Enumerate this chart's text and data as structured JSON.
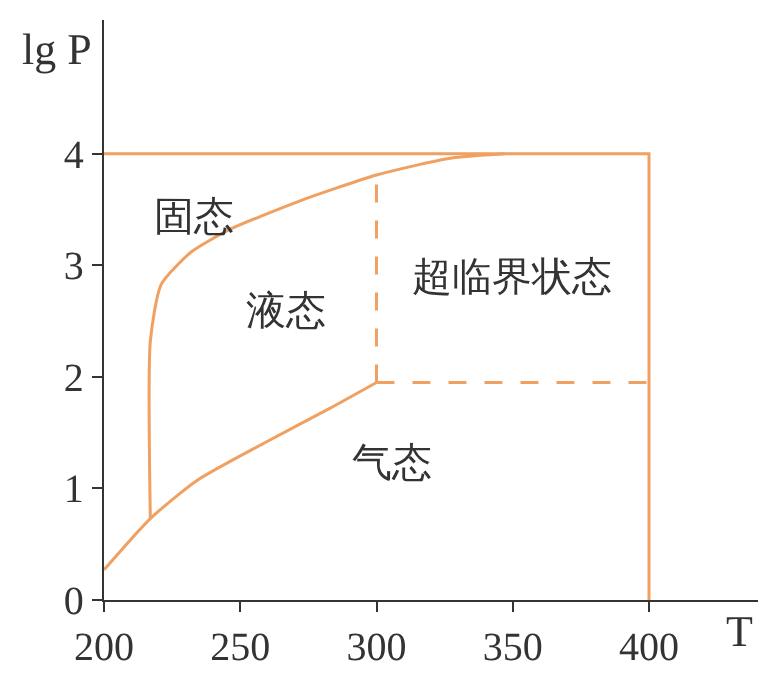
{
  "chart_data": {
    "type": "line",
    "xlabel": "T",
    "ylabel": "lg P",
    "xlim": [
      200,
      440
    ],
    "ylim": [
      0,
      5.2
    ],
    "xticks": [
      200,
      250,
      300,
      350,
      400
    ],
    "yticks": [
      0,
      1,
      2,
      3,
      4
    ],
    "marker": "none",
    "series": [
      {
        "color": "#f0a060",
        "line_style": "solid",
        "x": [
          200,
          217,
          234,
          259,
          283,
          300
        ],
        "values": [
          0.27,
          0.73,
          1.07,
          1.41,
          1.72,
          1.95
        ]
      },
      {
        "color": "#f0a060",
        "line_style": "solid",
        "x": [
          217,
          217,
          221,
          232,
          246,
          271,
          300,
          327,
          347
        ],
        "values": [
          0.73,
          2.32,
          2.83,
          3.12,
          3.32,
          3.57,
          3.81,
          3.96,
          4.0
        ]
      },
      {
        "color": "#f0a060",
        "line_style": "solid",
        "x": [
          200,
          400,
          400
        ],
        "values": [
          4,
          4,
          0
        ]
      },
      {
        "color": "#f0a060",
        "line_style": "dashed",
        "x": [
          300,
          300
        ],
        "values": [
          1.95,
          3.81
        ]
      },
      {
        "color": "#f0a060",
        "line_style": "dashed",
        "x": [
          300,
          400
        ],
        "values": [
          1.95,
          1.95
        ]
      }
    ],
    "annotations": [
      "固态",
      "液态",
      "超临界状态",
      "气态"
    ]
  }
}
